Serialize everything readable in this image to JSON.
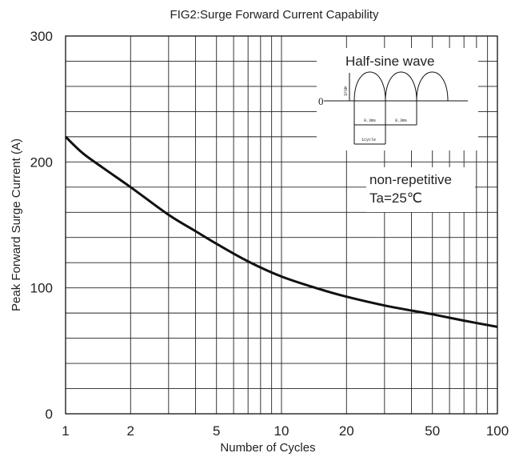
{
  "chart_data": {
    "type": "line",
    "title": "FIG2:Surge Forward Current Capability",
    "xlabel": "Number of Cycles",
    "ylabel": "Peak Forward Surge Current (A)",
    "x_scale": "log",
    "xlim": [
      1,
      100
    ],
    "ylim": [
      0,
      300
    ],
    "x_ticks": [
      "1",
      "2",
      "5",
      "10",
      "20",
      "50",
      "100"
    ],
    "x_tick_values": [
      1,
      2,
      5,
      10,
      20,
      50,
      100
    ],
    "y_ticks": [
      "0",
      "100",
      "200",
      "300"
    ],
    "y_tick_values": [
      0,
      100,
      200,
      300
    ],
    "grid": true,
    "series": [
      {
        "x": [
          1,
          1.2,
          1.5,
          2,
          3,
          4,
          5,
          7,
          10,
          15,
          20,
          30,
          40,
          50,
          70,
          100
        ],
        "y": [
          220,
          207,
          195,
          180,
          158,
          145,
          135,
          121,
          109,
          99,
          93,
          86,
          82,
          79,
          74,
          69
        ]
      }
    ],
    "annotations": {
      "inset_title": "Half-sine wave",
      "inset_zero": "0",
      "inset_ifsm": "IFSM",
      "inset_period_1": "8.3ms",
      "inset_period_2": "8.3ms",
      "inset_cycle": "1cycle",
      "condition_1": "non-repetitive",
      "condition_2": "Ta=25℃"
    }
  }
}
